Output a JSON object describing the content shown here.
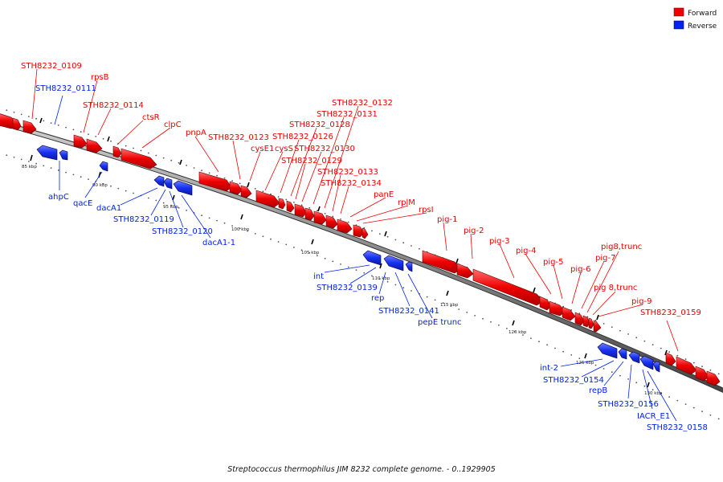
{
  "title": "Streptococcus thermophilus JIM 8232 complete genome. - 0..1929905",
  "legend": {
    "forward": {
      "label": "Forward",
      "color": "#ee0000"
    },
    "reverse": {
      "label": "Reverse",
      "color": "#0022ee"
    }
  },
  "ticks": [
    "85 kbp",
    "90 kbp",
    "95 kbp",
    "100 kbp",
    "105 kbp",
    "110 kbp",
    "115 kbp",
    "120 kbp",
    "125 kbp",
    "130 kbp"
  ],
  "forward_labels": [
    "STH8232_0109",
    "rpsB",
    "STH8232_0114",
    "ctsR",
    "clpC",
    "pnpA",
    "STH8232_0123",
    "cysE1",
    "cysS",
    "STH8232_0126",
    "STH8232_0128",
    "STH8232_0129",
    "STH8232_0130",
    "STH8232_0131",
    "STH8232_0132",
    "STH8232_0133",
    "STH8232_0134",
    "panE",
    "rplM",
    "rpsI",
    "pig-1",
    "pig-2",
    "pig-3",
    "pig-4",
    "pig-5",
    "pig-6",
    "pig-7",
    "pig8,trunc",
    "pig 8,trunc",
    "pig-9",
    "STH8232_0159"
  ],
  "reverse_labels": [
    "STH8232_0111",
    "ahpC",
    "qacE",
    "dacA1",
    "STH8232_0119",
    "STH8232_0120",
    "dacA1-1",
    "int",
    "STH8232_0139",
    "rep",
    "STH8232_0141",
    "pepE trunc",
    "int-2",
    "STH8232_0154",
    "repB",
    "STH8232_0156",
    "IACR_E1",
    "STH8232_0158"
  ]
}
